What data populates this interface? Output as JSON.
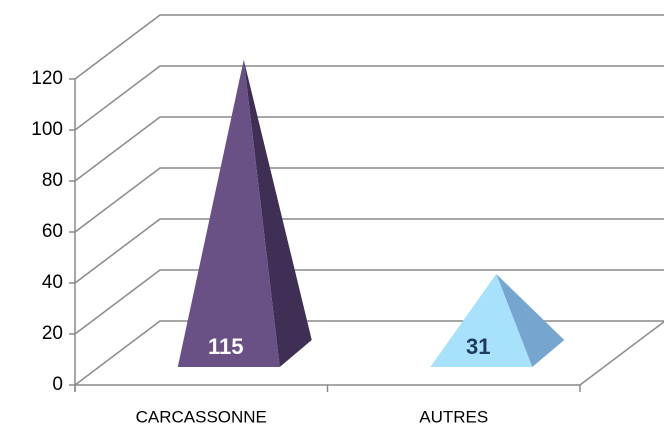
{
  "chart_data": {
    "type": "pyramid3d",
    "categories": [
      "CARCASSONNE",
      "AUTRES"
    ],
    "values": [
      115,
      31
    ],
    "colors": [
      {
        "front": "#6a5185",
        "side": "#3f2f55",
        "label": "#ffffff"
      },
      {
        "front": "#a8e1fb",
        "side": "#76a6d0",
        "label": "#1f3a5f"
      }
    ],
    "ylim": [
      0,
      120
    ],
    "yticks": [
      0,
      20,
      40,
      60,
      80,
      100,
      120
    ],
    "grid": true
  }
}
